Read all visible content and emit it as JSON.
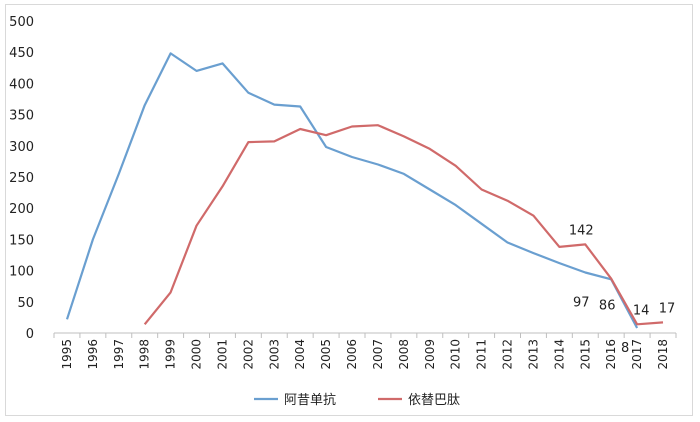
{
  "chart_data": {
    "type": "line",
    "title": "",
    "xlabel": "",
    "ylabel": "",
    "ylim": [
      0,
      500
    ],
    "yticks": [
      0,
      50,
      100,
      150,
      200,
      250,
      300,
      350,
      400,
      450,
      500
    ],
    "categories": [
      "1995",
      "1996",
      "1997",
      "1998",
      "1999",
      "2000",
      "2001",
      "2002",
      "2003",
      "2004",
      "2005",
      "2006",
      "2007",
      "2008",
      "2009",
      "2010",
      "2011",
      "2012",
      "2013",
      "2014",
      "2015",
      "2016",
      "2017",
      "2018"
    ],
    "grid": false,
    "legend_position": "bottom",
    "series": [
      {
        "name": "阿昔单抗",
        "color": "#6a9fd0",
        "values": [
          22,
          150,
          255,
          365,
          448,
          420,
          432,
          385,
          366,
          363,
          298,
          282,
          270,
          255,
          230,
          205,
          175,
          145,
          128,
          112,
          97,
          86,
          8,
          null
        ],
        "data_labels": [
          {
            "index": 20,
            "text": "97"
          },
          {
            "index": 21,
            "text": "86"
          },
          {
            "index": 22,
            "text": "8"
          }
        ]
      },
      {
        "name": "依替巴肽",
        "color": "#d06a6a",
        "values": [
          null,
          null,
          null,
          14,
          65,
          172,
          235,
          306,
          307,
          327,
          317,
          331,
          333,
          315,
          295,
          268,
          230,
          212,
          188,
          138,
          142,
          87,
          14,
          17
        ],
        "data_labels": [
          {
            "index": 20,
            "text": "142"
          },
          {
            "index": 22,
            "text": "14"
          },
          {
            "index": 23,
            "text": "17"
          }
        ]
      }
    ]
  }
}
